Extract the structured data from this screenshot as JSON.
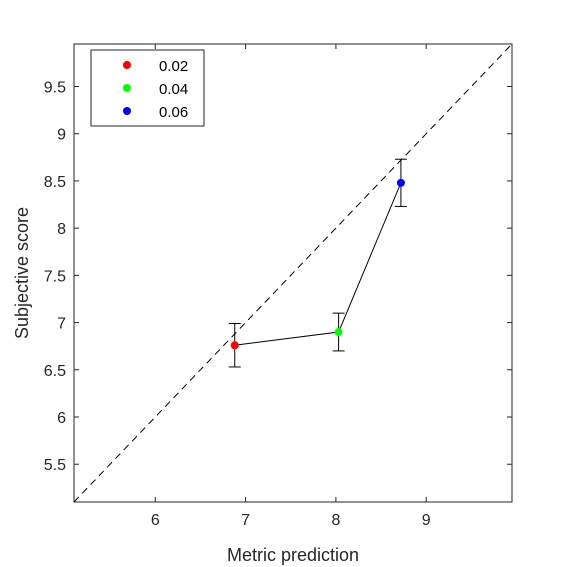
{
  "chart_data": {
    "type": "scatter",
    "xlabel": "Metric prediction",
    "ylabel": "Subjective score",
    "xlim": [
      5.1,
      9.95
    ],
    "ylim": [
      5.1,
      9.95
    ],
    "xticks": [
      6,
      7,
      8,
      9
    ],
    "yticks": [
      5.5,
      6,
      6.5,
      7,
      7.5,
      8,
      8.5,
      9,
      9.5
    ],
    "xtick_labels": [
      "6",
      "7",
      "8",
      "9"
    ],
    "ytick_labels": [
      "5.5",
      "6",
      "6.5",
      "7",
      "7.5",
      "8",
      "8.5",
      "9",
      "9.5"
    ],
    "grid": false,
    "legend_position": "top-left",
    "reference_line": "dashed diagonal y = x",
    "connect_points": true,
    "series": [
      {
        "name": "0.02",
        "color": "#ff0000",
        "x": 6.88,
        "y": 6.76,
        "err_low": 6.53,
        "err_high": 6.99
      },
      {
        "name": "0.04",
        "color": "#00ff00",
        "x": 8.03,
        "y": 6.9,
        "err_low": 6.7,
        "err_high": 7.1
      },
      {
        "name": "0.06",
        "color": "#0000ff",
        "x": 8.72,
        "y": 8.48,
        "err_low": 8.23,
        "err_high": 8.73
      }
    ]
  }
}
